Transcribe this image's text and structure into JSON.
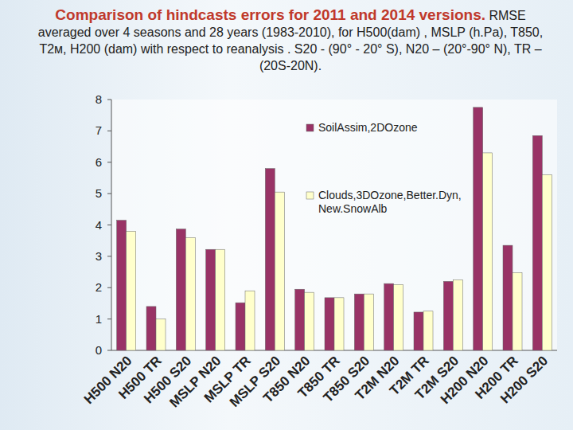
{
  "chart_data": {
    "type": "bar",
    "title": "Comparison of hindcasts errors for 2011 and 2014 versions.",
    "subtitle": "RMSE averaged over 4 seasons and 28 years (1983-2010), for H500(dam) , MSLP (h.Pa), T850, T2м, H200 (dam) with respect to reanalysis . S20 - (90° - 20° S), N20 – (20°-90° N), TR – (20S-20N).",
    "categories": [
      "H500 N20",
      "H500 TR",
      "H500 S20",
      "MSLP N20",
      "MSLP TR",
      "MSLP S20",
      "T850 N20",
      "T850 TR",
      "T850 S20",
      "T2M N20",
      "T2M TR",
      "T2M S20",
      "H200 N20",
      "H200 TR",
      "H200 S20"
    ],
    "series": [
      {
        "name": "SoilAssim,2DOzone",
        "color": "#993366",
        "values": [
          4.15,
          1.4,
          3.87,
          3.22,
          1.52,
          5.8,
          1.95,
          1.68,
          1.8,
          2.13,
          1.22,
          2.2,
          7.75,
          3.35,
          6.85
        ]
      },
      {
        "name": "Clouds,3DOzone,Better.Dyn, New.SnowAlb",
        "color": "#ffffcc",
        "values": [
          3.8,
          1.0,
          3.6,
          3.22,
          1.9,
          5.05,
          1.85,
          1.68,
          1.8,
          2.1,
          1.25,
          2.25,
          6.3,
          2.48,
          5.6
        ]
      }
    ],
    "ylim": [
      0,
      8
    ],
    "yticks": [
      0,
      1,
      2,
      3,
      4,
      5,
      6,
      7,
      8
    ],
    "grid": false,
    "legend": "top-right"
  }
}
